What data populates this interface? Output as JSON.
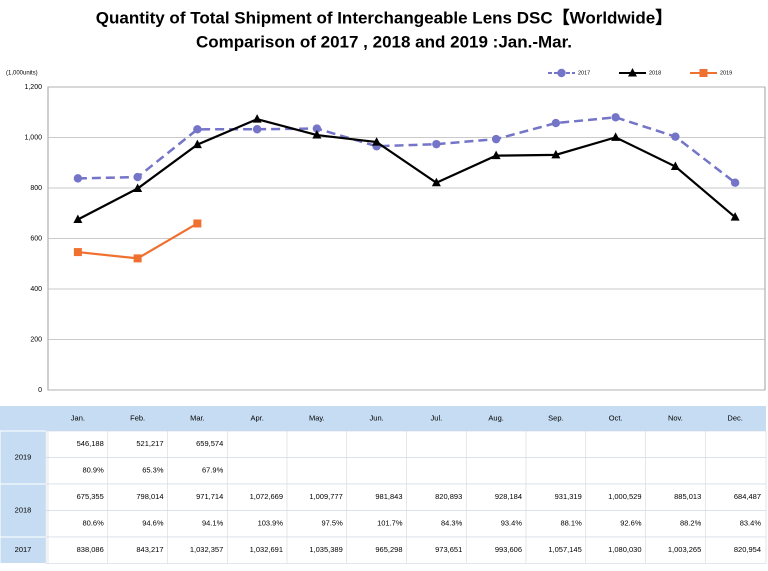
{
  "chart_data": {
    "type": "line",
    "title": "Quantity of Total Shipment of Interchangeable Lens DSC【Worldwide】",
    "subtitle": "Comparison of 2017 , 2018 and 2019 :Jan.-Mar.",
    "y_unit_label": "(1,000units)",
    "categories": [
      "Jan.",
      "Feb.",
      "Mar.",
      "Apr.",
      "May.",
      "Jun.",
      "Jul.",
      "Aug.",
      "Sep.",
      "Oct.",
      "Nov.",
      "Dec."
    ],
    "ylim": [
      0,
      1200
    ],
    "yticks": [
      0,
      200,
      400,
      600,
      800,
      {
        "value": 1000,
        "label": "1,000"
      },
      {
        "value": 1200,
        "label": "1,200"
      }
    ],
    "grid": true,
    "legend": "top-right",
    "series": [
      {
        "name": "2017",
        "color": "#7474c8",
        "marker": "circle",
        "dashed": true,
        "values": [
          838.086,
          843.217,
          1032.357,
          1032.691,
          1035.389,
          965.298,
          973.651,
          993.606,
          1057.145,
          1080.03,
          1003.265,
          820.954
        ],
        "value_labels": [
          "838,086",
          "843,217",
          "1,032,357",
          "1,032,691",
          "1,035,389",
          "965,298",
          "973,651",
          "993,606",
          "1,057,145",
          "1,080,030",
          "1,003,265",
          "820,954"
        ]
      },
      {
        "name": "2018",
        "color": "#000000",
        "marker": "triangle",
        "dashed": false,
        "values": [
          675.355,
          798.014,
          971.714,
          1072.669,
          1009.777,
          981.843,
          820.893,
          928.184,
          931.319,
          1000.529,
          885.013,
          684.487
        ],
        "value_labels": [
          "675,355",
          "798,014",
          "971,714",
          "1,072,669",
          "1,009,777",
          "981,843",
          "820,893",
          "928,184",
          "931,319",
          "1,000,529",
          "885,013",
          "684,487"
        ],
        "ratios": [
          "80.6%",
          "94.6%",
          "94.1%",
          "103.9%",
          "97.5%",
          "101.7%",
          "84.3%",
          "93.4%",
          "88.1%",
          "92.6%",
          "88.2%",
          "83.4%"
        ]
      },
      {
        "name": "2019",
        "color": "#f07030",
        "marker": "square",
        "dashed": false,
        "values": [
          546.188,
          521.217,
          659.574,
          null,
          null,
          null,
          null,
          null,
          null,
          null,
          null,
          null
        ],
        "value_labels": [
          "546,188",
          "521,217",
          "659,574",
          null,
          null,
          null,
          null,
          null,
          null,
          null,
          null,
          null
        ],
        "ratios": [
          "80.9%",
          "65.3%",
          "67.9%",
          null,
          null,
          null,
          null,
          null,
          null,
          null,
          null,
          null
        ]
      }
    ]
  }
}
